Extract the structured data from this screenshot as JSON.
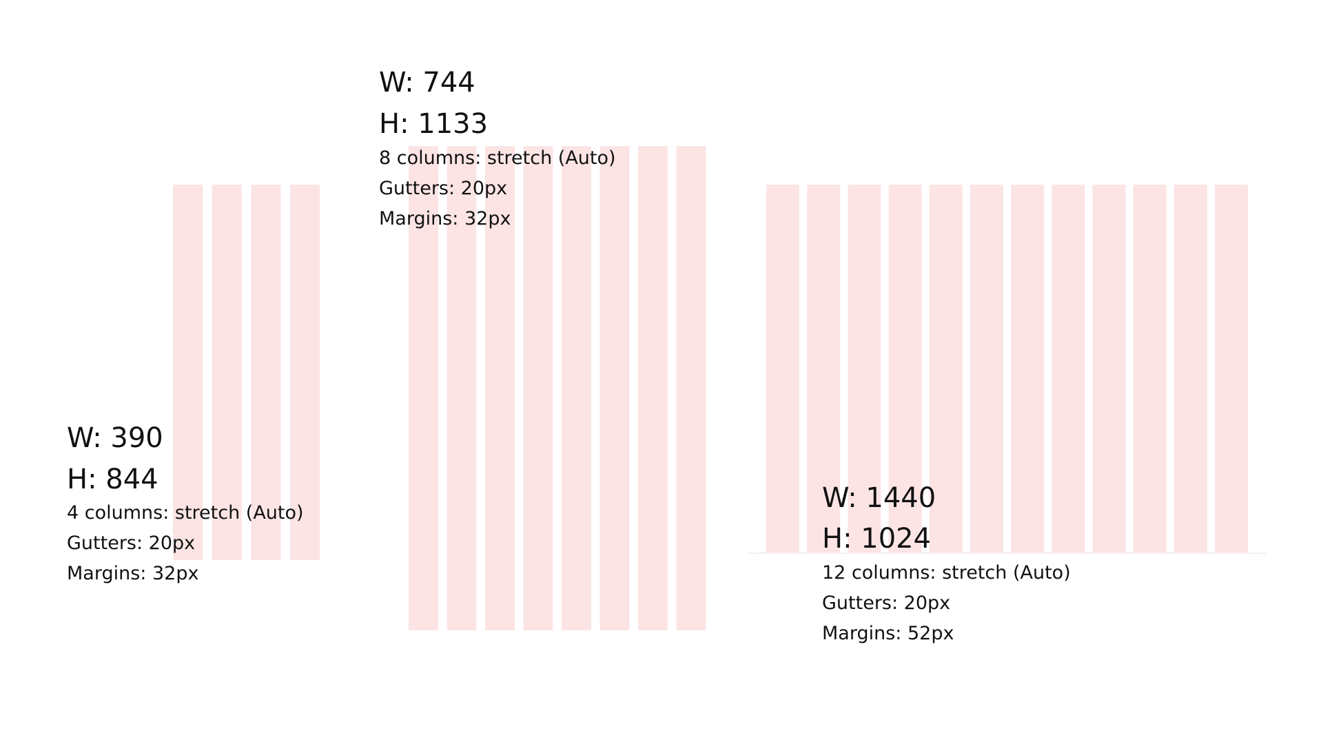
{
  "grids": [
    {
      "width": "W: 390",
      "height": "H: 844",
      "columns": "4 columns: stretch (Auto)",
      "gutters": "Gutters: 20px",
      "margins": "Margins: 32px"
    },
    {
      "width": "W: 744",
      "height": "H: 1133",
      "columns": "8 columns: stretch (Auto)",
      "gutters": "Gutters: 20px",
      "margins": "Margins: 32px"
    },
    {
      "width": "W: 1440",
      "height": "H: 1024",
      "columns": "12 columns: stretch (Auto)",
      "gutters": "Gutters: 20px",
      "margins": "Margins: 52px"
    }
  ]
}
